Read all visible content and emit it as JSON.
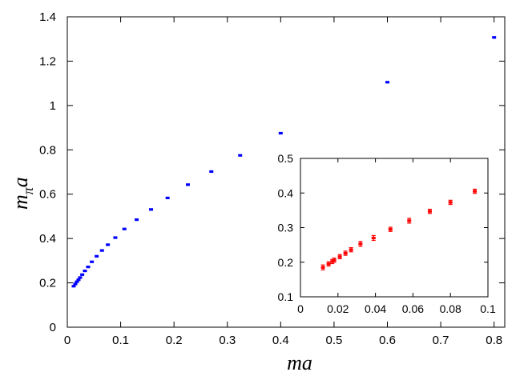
{
  "chart_data": [
    {
      "type": "scatter",
      "xlabel": "ma",
      "ylabel_main": "m",
      "ylabel_sub": "π",
      "ylabel_tail": "a",
      "xlim": [
        0,
        0.82
      ],
      "ylim": [
        0,
        1.4
      ],
      "x_ticks": [
        0,
        0.1,
        0.2,
        0.3,
        0.4,
        0.5,
        0.6,
        0.7,
        0.8
      ],
      "x_tick_labels": [
        "0",
        "0.1",
        "0.2",
        "0.3",
        "0.4",
        "0.5",
        "0.6",
        "0.7",
        "0.8"
      ],
      "y_ticks": [
        0,
        0.2,
        0.4,
        0.6,
        0.8,
        1,
        1.2,
        1.4
      ],
      "y_tick_labels": [
        "0",
        "0.2",
        "0.4",
        "0.6",
        "0.8",
        "1",
        "1.2",
        "1.4"
      ],
      "color": "#0000ff",
      "points": [
        [
          0.012,
          0.185
        ],
        [
          0.015,
          0.195
        ],
        [
          0.018,
          0.205
        ],
        [
          0.021,
          0.214
        ],
        [
          0.024,
          0.224
        ],
        [
          0.028,
          0.237
        ],
        [
          0.033,
          0.254
        ],
        [
          0.039,
          0.272
        ],
        [
          0.046,
          0.295
        ],
        [
          0.055,
          0.32
        ],
        [
          0.065,
          0.346
        ],
        [
          0.076,
          0.372
        ],
        [
          0.09,
          0.404
        ],
        [
          0.107,
          0.443
        ],
        [
          0.13,
          0.485
        ],
        [
          0.157,
          0.531
        ],
        [
          0.188,
          0.583
        ],
        [
          0.226,
          0.643
        ],
        [
          0.27,
          0.702
        ],
        [
          0.324,
          0.775
        ],
        [
          0.4,
          0.875
        ],
        [
          0.6,
          1.105
        ],
        [
          0.8,
          1.307
        ]
      ]
    },
    {
      "type": "scatter",
      "xlim": [
        0,
        0.1
      ],
      "ylim": [
        0.1,
        0.5
      ],
      "x_ticks": [
        0,
        0.02,
        0.04,
        0.06,
        0.08,
        0.1
      ],
      "x_tick_labels": [
        "0",
        "0.02",
        "0.04",
        "0.06",
        "0.08",
        "0.1"
      ],
      "y_ticks": [
        0.1,
        0.2,
        0.3,
        0.4,
        0.5
      ],
      "y_tick_labels": [
        "0.1",
        "0.2",
        "0.3",
        "0.4",
        "0.5"
      ],
      "color": "#ff0000",
      "points": [
        [
          0.012,
          0.185,
          0.007
        ],
        [
          0.015,
          0.195,
          0.006
        ],
        [
          0.017,
          0.202,
          0.006
        ],
        [
          0.018,
          0.206,
          0.006
        ],
        [
          0.021,
          0.216,
          0.006
        ],
        [
          0.024,
          0.226,
          0.006
        ],
        [
          0.027,
          0.236,
          0.006
        ],
        [
          0.032,
          0.253,
          0.007
        ],
        [
          0.039,
          0.27,
          0.007
        ],
        [
          0.048,
          0.295,
          0.006
        ],
        [
          0.058,
          0.32,
          0.007
        ],
        [
          0.069,
          0.347,
          0.006
        ],
        [
          0.08,
          0.373,
          0.006
        ],
        [
          0.093,
          0.405,
          0.006
        ]
      ]
    }
  ]
}
